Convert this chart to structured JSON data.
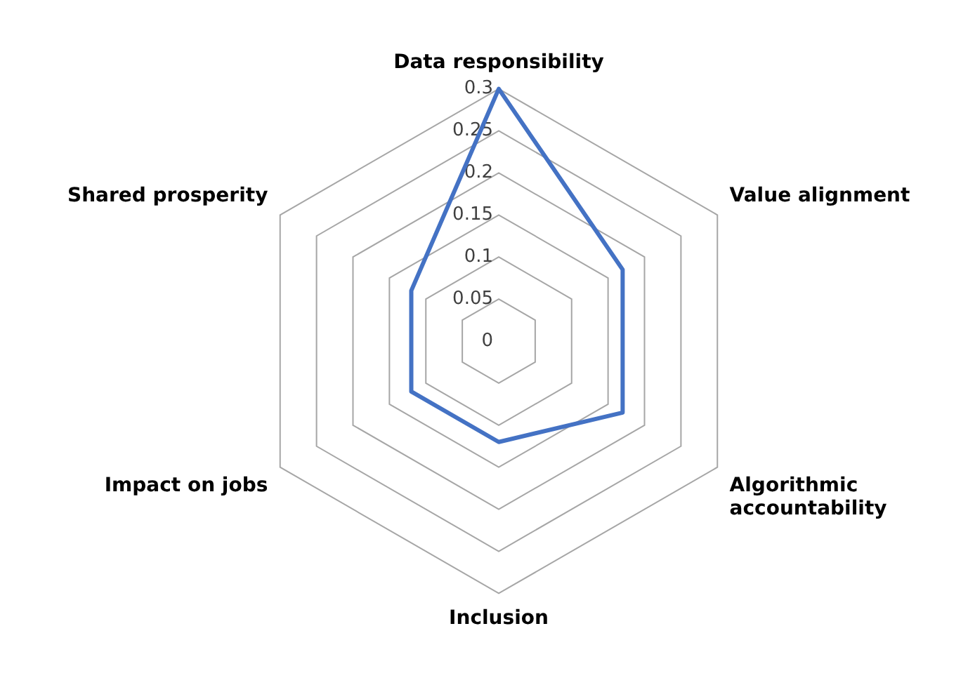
{
  "chart_data": {
    "type": "radar",
    "categories": [
      "Data responsibility",
      "Value alignment",
      "Algorithmic accountability",
      "Inclusion",
      "Impact on jobs",
      "Shared prosperity"
    ],
    "series": [
      {
        "color": "#4472c4",
        "values": [
          0.3,
          0.17,
          0.17,
          0.12,
          0.12,
          0.12
        ]
      }
    ],
    "ylim": [
      0,
      0.3
    ],
    "yticks": [
      0,
      0.05,
      0.1,
      0.15,
      0.2,
      0.25,
      0.3
    ],
    "grid": true,
    "legend": false,
    "marker": "none",
    "line_style": "solid"
  }
}
